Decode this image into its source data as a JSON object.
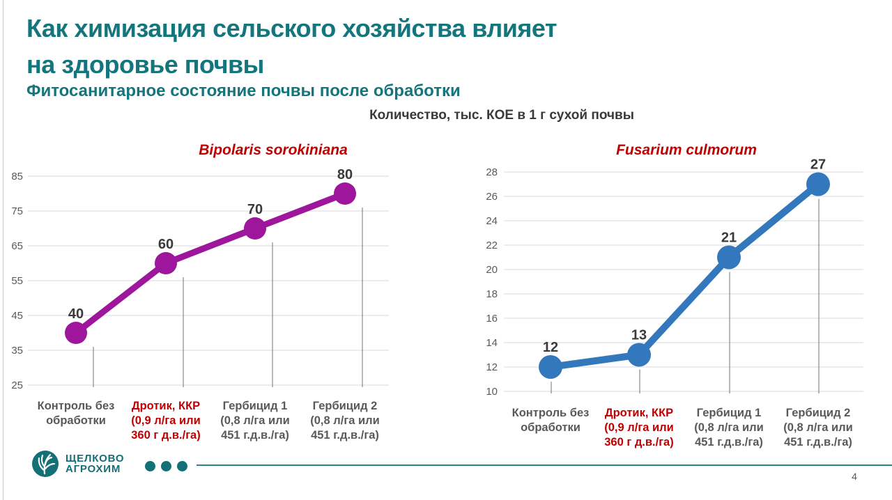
{
  "slide": {
    "title_line1": "Как химизация сельского хозяйства влияет",
    "title_line2": "на здоровье почвы",
    "subtitle": "Фитосанитарное состояние почвы после обработки",
    "axis_caption": "Количество, тыс. КОЕ в 1 г сухой почвы",
    "page_number": "4"
  },
  "logo": {
    "name_line1": "ЩЕЛКОВО",
    "name_line2": "АГРОХИМ"
  },
  "colors": {
    "teal": "#14757C",
    "red": "#C00000",
    "magenta": "#9E169B",
    "blue": "#3377BC",
    "grid": "#D9D9D9",
    "dropline": "#707070",
    "axis_text": "#595959",
    "data_label": "#3A3A3A"
  },
  "chart_data": [
    {
      "type": "line",
      "title": "Bipolaris sorokiniana",
      "categories": [
        [
          "Контроль без",
          "обработки"
        ],
        [
          "Дротик, ККР",
          "(0,9 л/га или",
          "360 г д.в./га)"
        ],
        [
          "Гербицид 1",
          "(0,8 л/га или",
          "451 г.д.в./га)"
        ],
        [
          "Гербицид 2",
          "(0,8 л/га или",
          "451 г.д.в./га)"
        ]
      ],
      "highlight_category": 1,
      "series": [
        {
          "name": "Bipolaris sorokiniana",
          "values": [
            40,
            60,
            70,
            80
          ]
        }
      ],
      "ylim": [
        25,
        85
      ],
      "yticks": [
        25,
        35,
        45,
        55,
        65,
        75,
        85
      ],
      "grid": true,
      "legend": "none",
      "line_color": "#9E169B"
    },
    {
      "type": "line",
      "title": "Fusarium culmorum",
      "categories": [
        [
          "Контроль без",
          "обработки"
        ],
        [
          "Дротик, ККР",
          "(0,9 л/га или",
          "360 г д.в./га)"
        ],
        [
          "Гербицид 1",
          "(0,8 л/га или",
          "451 г.д.в./га)"
        ],
        [
          "Гербицид 2",
          "(0,8 л/га или",
          "451 г.д.в./га)"
        ]
      ],
      "highlight_category": 1,
      "series": [
        {
          "name": "Fusarium culmorum",
          "values": [
            12,
            13,
            21,
            27
          ]
        }
      ],
      "ylim": [
        10,
        28
      ],
      "yticks": [
        10,
        12,
        14,
        16,
        18,
        20,
        22,
        24,
        26,
        28
      ],
      "grid": true,
      "legend": "none",
      "line_color": "#3377BC"
    }
  ]
}
